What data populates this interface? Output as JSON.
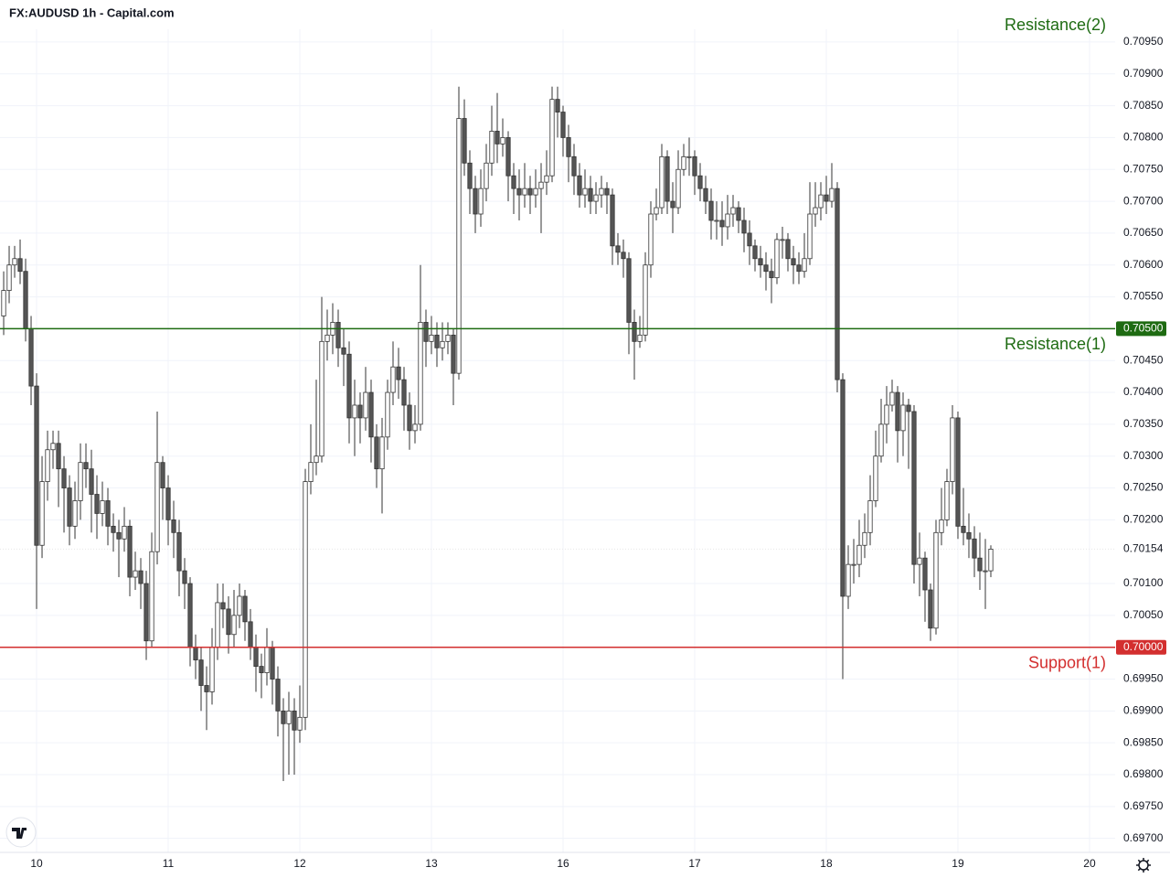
{
  "chart_data": {
    "type": "candlestick",
    "title": "FX:AUDUSD 1h - Capital.com",
    "ylim": [
      0.69678,
      0.7097
    ],
    "xlim": [
      -0.67,
      202.67
    ],
    "yticks": [
      {
        "value": 0.7095,
        "label": "0.70950"
      },
      {
        "value": 0.709,
        "label": "0.70900"
      },
      {
        "value": 0.7085,
        "label": "0.70850"
      },
      {
        "value": 0.708,
        "label": "0.70800"
      },
      {
        "value": 0.7075,
        "label": "0.70750"
      },
      {
        "value": 0.707,
        "label": "0.70700"
      },
      {
        "value": 0.7065,
        "label": "0.70650"
      },
      {
        "value": 0.706,
        "label": "0.70600"
      },
      {
        "value": 0.7055,
        "label": "0.70550"
      },
      {
        "value": 0.7045,
        "label": "0.70450"
      },
      {
        "value": 0.704,
        "label": "0.70400"
      },
      {
        "value": 0.7035,
        "label": "0.70350"
      },
      {
        "value": 0.703,
        "label": "0.70300"
      },
      {
        "value": 0.7025,
        "label": "0.70250"
      },
      {
        "value": 0.702,
        "label": "0.70200"
      },
      {
        "value": 0.701,
        "label": "0.70100"
      },
      {
        "value": 0.7005,
        "label": "0.70050"
      },
      {
        "value": 0.6995,
        "label": "0.69950"
      },
      {
        "value": 0.699,
        "label": "0.69900"
      },
      {
        "value": 0.6985,
        "label": "0.69850"
      },
      {
        "value": 0.698,
        "label": "0.69800"
      },
      {
        "value": 0.6975,
        "label": "0.69750"
      },
      {
        "value": 0.697,
        "label": "0.69700"
      }
    ],
    "xticks": [
      {
        "value": 6,
        "label": "10"
      },
      {
        "value": 30,
        "label": "11"
      },
      {
        "value": 54,
        "label": "12"
      },
      {
        "value": 78,
        "label": "13"
      },
      {
        "value": 102,
        "label": "16"
      },
      {
        "value": 126,
        "label": "17"
      },
      {
        "value": 150,
        "label": "18"
      },
      {
        "value": 174,
        "label": "19"
      },
      {
        "value": 198,
        "label": "20"
      }
    ],
    "grid": true,
    "up_color": "#ffffff",
    "down_color": "#555555",
    "edge_color": "#333333",
    "levels": [
      {
        "label": "Resistance(1)",
        "value": 0.705,
        "value_label": "0.70500",
        "color": "#1e6b12"
      },
      {
        "label": "Support(1)",
        "value": 0.7,
        "value_label": "0.70000",
        "color": "#d32f2f"
      },
      {
        "label": "Resistance(2)",
        "color": "#1e6b12"
      }
    ],
    "last_price": {
      "value": 0.70154,
      "label": "0.70154"
    },
    "ohlc": [
      [
        0.7052,
        0.7059,
        0.7049,
        0.7056
      ],
      [
        0.7056,
        0.7063,
        0.7054,
        0.706
      ],
      [
        0.706,
        0.7063,
        0.7058,
        0.7061
      ],
      [
        0.7061,
        0.7064,
        0.7057,
        0.7059
      ],
      [
        0.7059,
        0.7061,
        0.7048,
        0.705
      ],
      [
        0.705,
        0.7052,
        0.7038,
        0.7041
      ],
      [
        0.7041,
        0.7043,
        0.7006,
        0.7016
      ],
      [
        0.7016,
        0.703,
        0.7014,
        0.7026
      ],
      [
        0.7026,
        0.7034,
        0.7023,
        0.7031
      ],
      [
        0.7031,
        0.7034,
        0.7028,
        0.7032
      ],
      [
        0.7032,
        0.7034,
        0.7022,
        0.7028
      ],
      [
        0.7028,
        0.703,
        0.7018,
        0.7025
      ],
      [
        0.7025,
        0.7027,
        0.7016,
        0.7019
      ],
      [
        0.7019,
        0.7026,
        0.7017,
        0.7023
      ],
      [
        0.7023,
        0.7032,
        0.702,
        0.7029
      ],
      [
        0.7029,
        0.7032,
        0.7025,
        0.7028
      ],
      [
        0.7028,
        0.7031,
        0.7018,
        0.7024
      ],
      [
        0.7024,
        0.7027,
        0.7017,
        0.7021
      ],
      [
        0.7021,
        0.7026,
        0.7019,
        0.7023
      ],
      [
        0.7023,
        0.7025,
        0.7016,
        0.7019
      ],
      [
        0.7019,
        0.7021,
        0.7015,
        0.7018
      ],
      [
        0.7018,
        0.702,
        0.7011,
        0.7017
      ],
      [
        0.7017,
        0.7022,
        0.7015,
        0.7019
      ],
      [
        0.7019,
        0.702,
        0.7008,
        0.7011
      ],
      [
        0.7011,
        0.7015,
        0.7009,
        0.7012
      ],
      [
        0.7012,
        0.7014,
        0.7006,
        0.701
      ],
      [
        0.701,
        0.7012,
        0.6998,
        0.7001
      ],
      [
        0.7001,
        0.7018,
        0.7,
        0.7015
      ],
      [
        0.7015,
        0.7037,
        0.7013,
        0.7029
      ],
      [
        0.7029,
        0.703,
        0.702,
        0.7025
      ],
      [
        0.7025,
        0.7027,
        0.7016,
        0.702
      ],
      [
        0.702,
        0.7023,
        0.7014,
        0.7018
      ],
      [
        0.7018,
        0.702,
        0.7008,
        0.7012
      ],
      [
        0.7012,
        0.7014,
        0.7006,
        0.701
      ],
      [
        0.701,
        0.7011,
        0.6997,
        0.7
      ],
      [
        0.7,
        0.7002,
        0.6995,
        0.6998
      ],
      [
        0.6998,
        0.7,
        0.699,
        0.6994
      ],
      [
        0.6994,
        0.6997,
        0.6987,
        0.6993
      ],
      [
        0.6993,
        0.7003,
        0.6991,
        0.7
      ],
      [
        0.7,
        0.701,
        0.6998,
        0.7007
      ],
      [
        0.7007,
        0.701,
        0.7003,
        0.7006
      ],
      [
        0.7006,
        0.7008,
        0.6999,
        0.7002
      ],
      [
        0.7002,
        0.7009,
        0.7,
        0.7005
      ],
      [
        0.7005,
        0.701,
        0.7003,
        0.7008
      ],
      [
        0.7008,
        0.7009,
        0.7001,
        0.7004
      ],
      [
        0.7004,
        0.7006,
        0.6998,
        0.7
      ],
      [
        0.7,
        0.7002,
        0.6993,
        0.6997
      ],
      [
        0.6997,
        0.6999,
        0.6992,
        0.6996
      ],
      [
        0.6996,
        0.7003,
        0.6994,
        0.7
      ],
      [
        0.7,
        0.7001,
        0.6991,
        0.6995
      ],
      [
        0.6995,
        0.6997,
        0.6986,
        0.699
      ],
      [
        0.699,
        0.6992,
        0.6979,
        0.6988
      ],
      [
        0.6988,
        0.6993,
        0.698,
        0.699
      ],
      [
        0.699,
        0.6992,
        0.698,
        0.6987
      ],
      [
        0.6987,
        0.6994,
        0.6985,
        0.6989
      ],
      [
        0.6989,
        0.7028,
        0.6987,
        0.7026
      ],
      [
        0.7026,
        0.7035,
        0.7024,
        0.7029
      ],
      [
        0.7029,
        0.7042,
        0.7027,
        0.703
      ],
      [
        0.703,
        0.7055,
        0.7029,
        0.7048
      ],
      [
        0.7048,
        0.7053,
        0.7045,
        0.7049
      ],
      [
        0.7049,
        0.7054,
        0.7046,
        0.7051
      ],
      [
        0.7051,
        0.7053,
        0.7044,
        0.7047
      ],
      [
        0.7047,
        0.705,
        0.7041,
        0.7046
      ],
      [
        0.7046,
        0.7048,
        0.7032,
        0.7036
      ],
      [
        0.7036,
        0.7042,
        0.703,
        0.7038
      ],
      [
        0.7038,
        0.704,
        0.7032,
        0.7036
      ],
      [
        0.7036,
        0.7044,
        0.7034,
        0.704
      ],
      [
        0.704,
        0.7042,
        0.7029,
        0.7033
      ],
      [
        0.7033,
        0.7035,
        0.7025,
        0.7028
      ],
      [
        0.7028,
        0.7036,
        0.7021,
        0.7033
      ],
      [
        0.7033,
        0.7042,
        0.7031,
        0.704
      ],
      [
        0.704,
        0.7048,
        0.7038,
        0.7044
      ],
      [
        0.7044,
        0.7047,
        0.7039,
        0.7042
      ],
      [
        0.7042,
        0.7044,
        0.7034,
        0.7038
      ],
      [
        0.7038,
        0.704,
        0.7031,
        0.7034
      ],
      [
        0.7034,
        0.7038,
        0.7032,
        0.7035
      ],
      [
        0.7035,
        0.706,
        0.7034,
        0.7051
      ],
      [
        0.7051,
        0.7053,
        0.7044,
        0.7048
      ],
      [
        0.7048,
        0.7052,
        0.7046,
        0.7049
      ],
      [
        0.7049,
        0.7051,
        0.7044,
        0.7047
      ],
      [
        0.7047,
        0.7051,
        0.7045,
        0.7048
      ],
      [
        0.7048,
        0.7051,
        0.7046,
        0.7049
      ],
      [
        0.7049,
        0.705,
        0.7038,
        0.7043
      ],
      [
        0.7043,
        0.7088,
        0.7042,
        0.7083
      ],
      [
        0.7083,
        0.7086,
        0.7074,
        0.7076
      ],
      [
        0.7076,
        0.7078,
        0.7068,
        0.7072
      ],
      [
        0.7072,
        0.7074,
        0.7065,
        0.7068
      ],
      [
        0.7068,
        0.7075,
        0.7066,
        0.7072
      ],
      [
        0.7072,
        0.7079,
        0.707,
        0.7076
      ],
      [
        0.7076,
        0.7085,
        0.7074,
        0.7081
      ],
      [
        0.7081,
        0.7087,
        0.7076,
        0.7079
      ],
      [
        0.7079,
        0.7083,
        0.7077,
        0.708
      ],
      [
        0.708,
        0.7081,
        0.707,
        0.7074
      ],
      [
        0.7074,
        0.7076,
        0.7068,
        0.7072
      ],
      [
        0.7072,
        0.7075,
        0.7067,
        0.7071
      ],
      [
        0.7071,
        0.7076,
        0.7069,
        0.7072
      ],
      [
        0.7072,
        0.7074,
        0.7068,
        0.7071
      ],
      [
        0.7071,
        0.7075,
        0.7069,
        0.7072
      ],
      [
        0.7072,
        0.7076,
        0.7065,
        0.7073
      ],
      [
        0.7073,
        0.7078,
        0.7071,
        0.7074
      ],
      [
        0.7074,
        0.7088,
        0.7073,
        0.7086
      ],
      [
        0.7086,
        0.7088,
        0.708,
        0.7084
      ],
      [
        0.7084,
        0.7085,
        0.7077,
        0.708
      ],
      [
        0.708,
        0.7082,
        0.7073,
        0.7077
      ],
      [
        0.7077,
        0.7079,
        0.7071,
        0.7074
      ],
      [
        0.7074,
        0.7076,
        0.7069,
        0.7071
      ],
      [
        0.7071,
        0.7075,
        0.7069,
        0.7072
      ],
      [
        0.7072,
        0.7074,
        0.7068,
        0.707
      ],
      [
        0.707,
        0.7073,
        0.7068,
        0.7071
      ],
      [
        0.7071,
        0.7074,
        0.7069,
        0.7072
      ],
      [
        0.7072,
        0.7073,
        0.7068,
        0.7071
      ],
      [
        0.7071,
        0.7072,
        0.706,
        0.7063
      ],
      [
        0.7063,
        0.7065,
        0.706,
        0.7062
      ],
      [
        0.7062,
        0.7064,
        0.7058,
        0.7061
      ],
      [
        0.7061,
        0.7062,
        0.7046,
        0.7051
      ],
      [
        0.7051,
        0.7053,
        0.7042,
        0.7048
      ],
      [
        0.7048,
        0.7052,
        0.7047,
        0.7049
      ],
      [
        0.7049,
        0.7062,
        0.7048,
        0.706
      ],
      [
        0.706,
        0.707,
        0.7058,
        0.7068
      ],
      [
        0.7068,
        0.7072,
        0.7067,
        0.7069
      ],
      [
        0.7069,
        0.7079,
        0.7068,
        0.7077
      ],
      [
        0.7077,
        0.7078,
        0.7068,
        0.707
      ],
      [
        0.707,
        0.7073,
        0.7065,
        0.7069
      ],
      [
        0.7069,
        0.7078,
        0.7068,
        0.7075
      ],
      [
        0.7075,
        0.7079,
        0.7074,
        0.7077
      ],
      [
        0.7077,
        0.708,
        0.7074,
        0.7077
      ],
      [
        0.7077,
        0.7078,
        0.7071,
        0.7074
      ],
      [
        0.7074,
        0.7076,
        0.707,
        0.7072
      ],
      [
        0.7072,
        0.7074,
        0.7068,
        0.707
      ],
      [
        0.707,
        0.7072,
        0.7064,
        0.7067
      ],
      [
        0.7067,
        0.707,
        0.7064,
        0.7067
      ],
      [
        0.7067,
        0.707,
        0.7063,
        0.7066
      ],
      [
        0.7066,
        0.7071,
        0.7064,
        0.7068
      ],
      [
        0.7068,
        0.7071,
        0.7066,
        0.7069
      ],
      [
        0.7069,
        0.707,
        0.7065,
        0.7067
      ],
      [
        0.7067,
        0.7069,
        0.7062,
        0.7065
      ],
      [
        0.7065,
        0.7067,
        0.706,
        0.7063
      ],
      [
        0.7063,
        0.7064,
        0.7059,
        0.7061
      ],
      [
        0.7061,
        0.7063,
        0.7058,
        0.706
      ],
      [
        0.706,
        0.7062,
        0.7056,
        0.7059
      ],
      [
        0.7059,
        0.7061,
        0.7054,
        0.7058
      ],
      [
        0.7058,
        0.7065,
        0.7057,
        0.7064
      ],
      [
        0.7064,
        0.7066,
        0.7061,
        0.7064
      ],
      [
        0.7064,
        0.7065,
        0.7059,
        0.7061
      ],
      [
        0.7061,
        0.7063,
        0.7057,
        0.706
      ],
      [
        0.706,
        0.7062,
        0.7057,
        0.7059
      ],
      [
        0.7059,
        0.7065,
        0.7058,
        0.7061
      ],
      [
        0.7061,
        0.7073,
        0.706,
        0.7068
      ],
      [
        0.7068,
        0.7073,
        0.7066,
        0.7069
      ],
      [
        0.7069,
        0.7073,
        0.7067,
        0.7071
      ],
      [
        0.7071,
        0.7074,
        0.7068,
        0.707
      ],
      [
        0.707,
        0.7076,
        0.7069,
        0.7072
      ],
      [
        0.7072,
        0.7073,
        0.704,
        0.7042
      ],
      [
        0.7042,
        0.7043,
        0.6995,
        0.7008
      ],
      [
        0.7008,
        0.7016,
        0.7006,
        0.7013
      ],
      [
        0.7013,
        0.7017,
        0.701,
        0.7013
      ],
      [
        0.7013,
        0.702,
        0.7011,
        0.7016
      ],
      [
        0.7016,
        0.7021,
        0.7014,
        0.7018
      ],
      [
        0.7018,
        0.7027,
        0.7016,
        0.7023
      ],
      [
        0.7023,
        0.7034,
        0.7022,
        0.703
      ],
      [
        0.703,
        0.7039,
        0.7029,
        0.7035
      ],
      [
        0.7035,
        0.7041,
        0.7032,
        0.7038
      ],
      [
        0.7038,
        0.7042,
        0.7037,
        0.704
      ],
      [
        0.704,
        0.7041,
        0.7029,
        0.7034
      ],
      [
        0.7034,
        0.704,
        0.703,
        0.7038
      ],
      [
        0.7038,
        0.7039,
        0.7028,
        0.7037
      ],
      [
        0.7037,
        0.7038,
        0.701,
        0.7013
      ],
      [
        0.7013,
        0.7018,
        0.7008,
        0.7014
      ],
      [
        0.7014,
        0.7015,
        0.7004,
        0.7009
      ],
      [
        0.7009,
        0.701,
        0.7001,
        0.7003
      ],
      [
        0.7003,
        0.702,
        0.7002,
        0.7018
      ],
      [
        0.7018,
        0.7025,
        0.7016,
        0.702
      ],
      [
        0.702,
        0.7028,
        0.7019,
        0.7026
      ],
      [
        0.7026,
        0.7038,
        0.7024,
        0.7036
      ],
      [
        0.7036,
        0.7037,
        0.7017,
        0.7019
      ],
      [
        0.7019,
        0.7025,
        0.7016,
        0.7018
      ],
      [
        0.7018,
        0.7021,
        0.7014,
        0.7017
      ],
      [
        0.7017,
        0.7019,
        0.7011,
        0.7014
      ],
      [
        0.7014,
        0.7018,
        0.7009,
        0.7012
      ],
      [
        0.7012,
        0.7017,
        0.7006,
        0.7012
      ],
      [
        0.7012,
        0.7016,
        0.7011,
        0.70154
      ]
    ]
  }
}
